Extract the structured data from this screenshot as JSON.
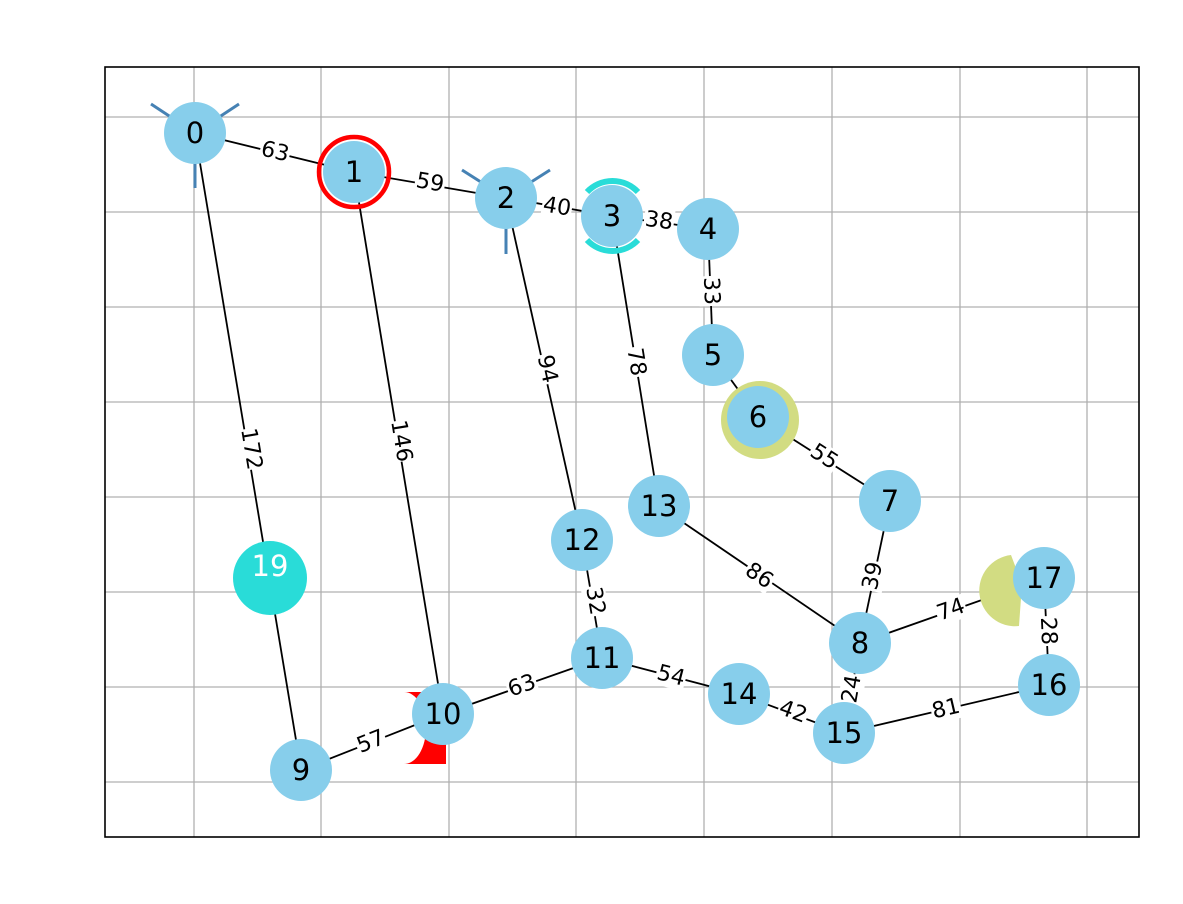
{
  "nodes": [
    {
      "id": "0",
      "label": "0"
    },
    {
      "id": "1",
      "label": "1"
    },
    {
      "id": "2",
      "label": "2"
    },
    {
      "id": "3",
      "label": "3"
    },
    {
      "id": "4",
      "label": "4"
    },
    {
      "id": "5",
      "label": "5"
    },
    {
      "id": "6",
      "label": "6"
    },
    {
      "id": "7",
      "label": "7"
    },
    {
      "id": "8",
      "label": "8"
    },
    {
      "id": "9",
      "label": "9"
    },
    {
      "id": "10",
      "label": "10"
    },
    {
      "id": "11",
      "label": "11"
    },
    {
      "id": "12",
      "label": "12"
    },
    {
      "id": "13",
      "label": "13"
    },
    {
      "id": "14",
      "label": "14"
    },
    {
      "id": "15",
      "label": "15"
    },
    {
      "id": "16",
      "label": "16"
    },
    {
      "id": "17",
      "label": "17"
    },
    {
      "id": "19",
      "label": "19"
    }
  ],
  "edges": [
    {
      "from": "0",
      "to": "1",
      "label": "63"
    },
    {
      "from": "0",
      "to": "9",
      "label": "172"
    },
    {
      "from": "1",
      "to": "2",
      "label": "59"
    },
    {
      "from": "1",
      "to": "10",
      "label": "146"
    },
    {
      "from": "2",
      "to": "3",
      "label": "40"
    },
    {
      "from": "2",
      "to": "12",
      "label": "94"
    },
    {
      "from": "3",
      "to": "4",
      "label": "38"
    },
    {
      "from": "3",
      "to": "13",
      "label": "78"
    },
    {
      "from": "4",
      "to": "5",
      "label": "33"
    },
    {
      "from": "5",
      "to": "6",
      "label": ""
    },
    {
      "from": "6",
      "to": "7",
      "label": "55"
    },
    {
      "from": "7",
      "to": "8",
      "label": "39"
    },
    {
      "from": "8",
      "to": "13",
      "label": "86"
    },
    {
      "from": "8",
      "to": "17",
      "label": "74"
    },
    {
      "from": "8",
      "to": "15",
      "label": "24"
    },
    {
      "from": "9",
      "to": "10",
      "label": "57"
    },
    {
      "from": "10",
      "to": "11",
      "label": "63"
    },
    {
      "from": "11",
      "to": "12",
      "label": "32"
    },
    {
      "from": "11",
      "to": "14",
      "label": "54"
    },
    {
      "from": "14",
      "to": "15",
      "label": "42"
    },
    {
      "from": "15",
      "to": "16",
      "label": "81"
    },
    {
      "from": "16",
      "to": "17",
      "label": "28"
    }
  ],
  "colors": {
    "node_fill": "#87ceeb",
    "edge": "#000000",
    "grid": "#b0b0b0",
    "highlight_red": "#ff0000",
    "highlight_cyan": "#29dcd8",
    "highlight_olive": "#d2dc82",
    "tick_marker": "#4682b4"
  }
}
